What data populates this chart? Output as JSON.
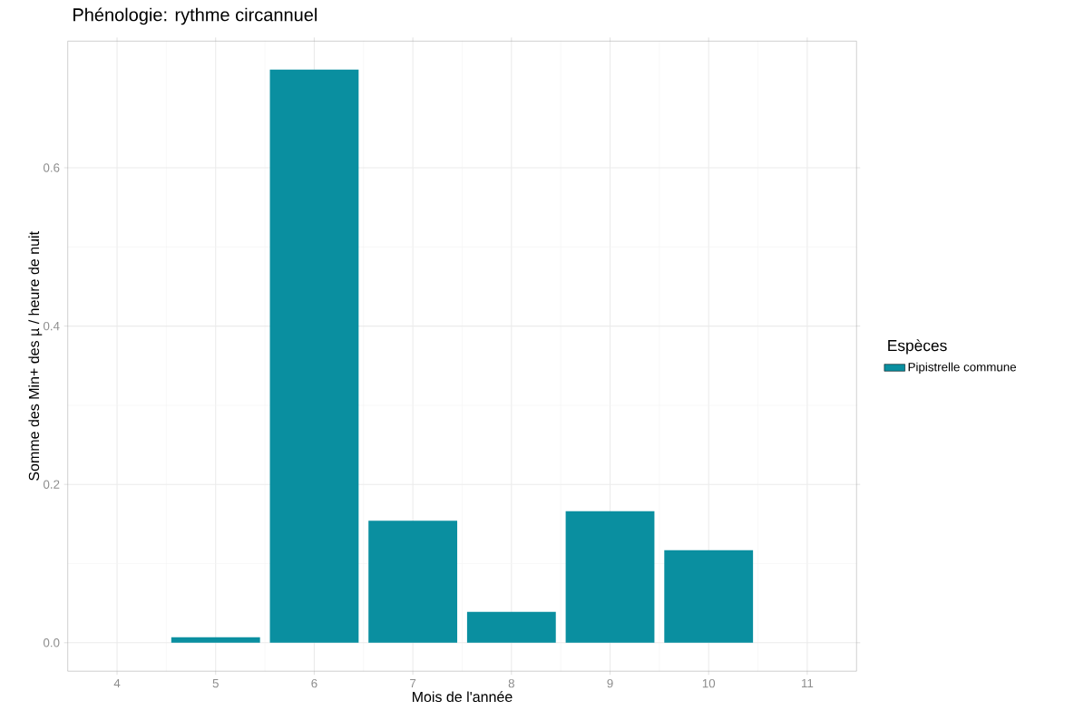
{
  "chart_data": {
    "type": "bar",
    "title": "Phénologie: rythme circannuel",
    "xlabel": "Mois de l'année",
    "ylabel": "Somme des Min+ des µ / heure de nuit",
    "legend_title": "Espèces",
    "x": [
      5,
      6,
      7,
      8,
      9,
      10
    ],
    "series": [
      {
        "name": "Pipistrelle commune",
        "color": "#0a8fa0",
        "values": [
          0.007,
          0.724,
          0.154,
          0.039,
          0.166,
          0.117
        ]
      }
    ],
    "xlim": [
      3.5,
      11.5
    ],
    "xticks": [
      4,
      5,
      6,
      7,
      8,
      9,
      10,
      11
    ],
    "ylim": [
      -0.036,
      0.76
    ],
    "yticks": [
      {
        "value": 0,
        "label": "0.0"
      },
      0.2,
      0.4,
      0.6
    ],
    "grid": true,
    "legend": "right"
  }
}
